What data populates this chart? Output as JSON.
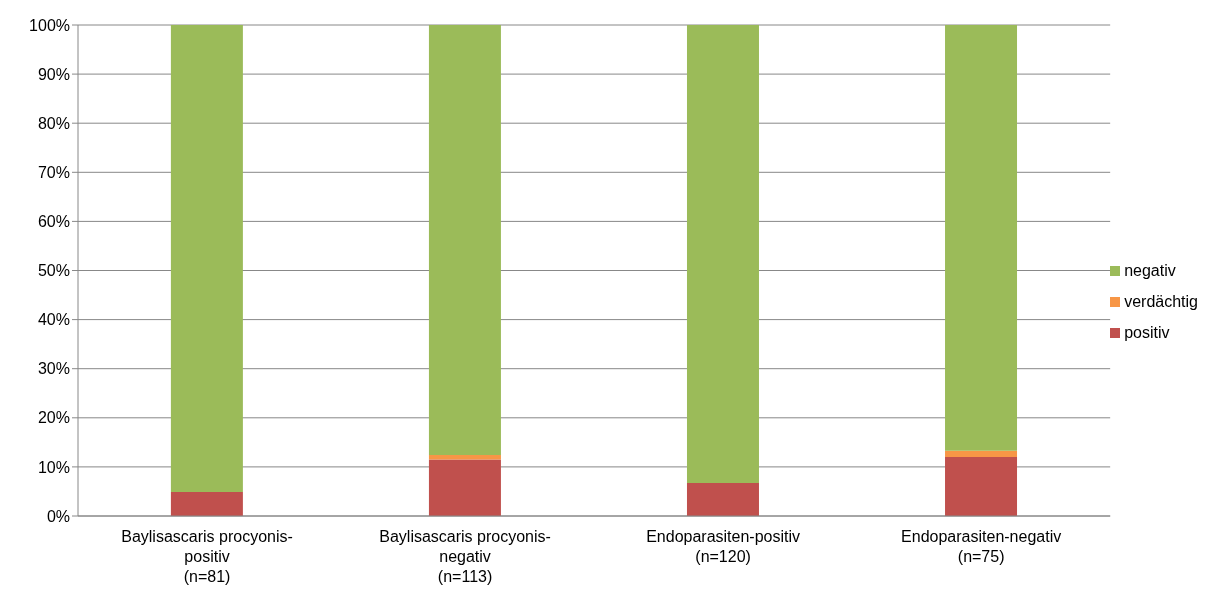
{
  "chart_data": {
    "type": "bar",
    "stacked": true,
    "categories": [
      "Baylisascaris procyonis-\npositiv\n(n=81)",
      "Baylisascaris procyonis-\nnegativ\n(n=113)",
      "Endoparasiten-positiv\n(n=120)",
      "Endoparasiten-negativ\n(n=75)"
    ],
    "series": [
      {
        "name": "positiv",
        "color": "#c0504d",
        "values": [
          4.9,
          11.5,
          6.7,
          12
        ]
      },
      {
        "name": "verdächtig",
        "color": "#f79646",
        "values": [
          0,
          0.9,
          0,
          1.3
        ]
      },
      {
        "name": "negativ",
        "color": "#9bbb59",
        "values": [
          95.1,
          87.6,
          93.3,
          86.7
        ]
      }
    ],
    "ylim": [
      0,
      100
    ],
    "yticks": [
      {
        "value": 0,
        "label": "0%"
      },
      {
        "value": 10,
        "label": "10%"
      },
      {
        "value": 20,
        "label": "20%"
      },
      {
        "value": 30,
        "label": "30%"
      },
      {
        "value": 40,
        "label": "40%"
      },
      {
        "value": 50,
        "label": "50%"
      },
      {
        "value": 60,
        "label": "60%"
      },
      {
        "value": 70,
        "label": "70%"
      },
      {
        "value": 80,
        "label": "80%"
      },
      {
        "value": 90,
        "label": "90%"
      },
      {
        "value": 100,
        "label": "100%"
      }
    ],
    "grid": "y",
    "legend": "right"
  }
}
